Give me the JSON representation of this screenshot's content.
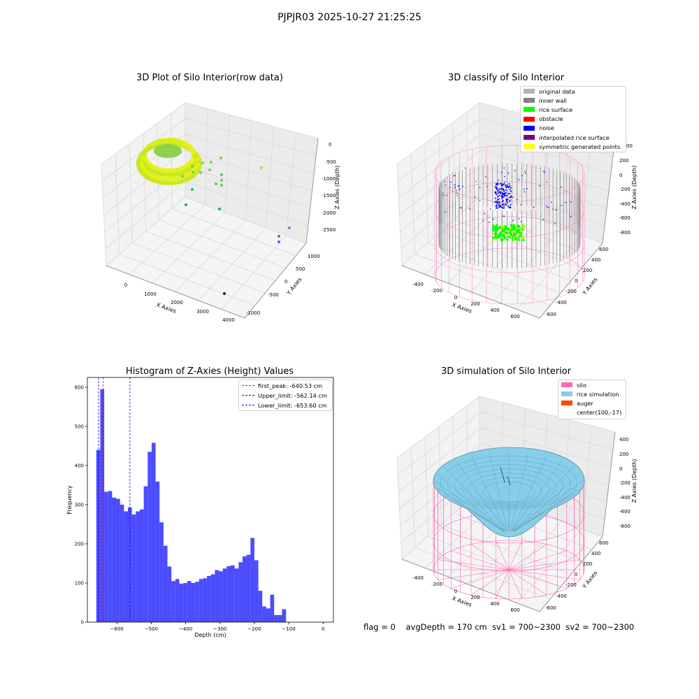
{
  "suptitle": "PJPJR03 2025-10-27 21:25:25",
  "status": {
    "flag": "flag = 0",
    "avg_depth": "avgDepth = 170 cm",
    "sv1": "sv1 = 700~2300",
    "sv2": "sv2 = 700~2300"
  },
  "plot1": {
    "title": "3D Plot of Silo Interior(row data)",
    "xlabel": "X Axies",
    "ylabel": "Y Axies",
    "zlabel": "Z Axies (Depth)",
    "xticks": [
      "0",
      "1000",
      "2000",
      "3000",
      "4000"
    ],
    "yticks": [
      "-1000",
      "-500",
      "0",
      "500",
      "1000"
    ],
    "zticks": [
      "0",
      "-500",
      "-1000",
      "-1500",
      "-2000",
      "-2500"
    ]
  },
  "plot2": {
    "title": "3D classify of Silo Interior",
    "xlabel": "X Axies",
    "ylabel": "Y Axies",
    "zlabel": "Z Axies (Depth)",
    "xticks": [
      "-400",
      "-200",
      "0",
      "200",
      "400",
      "600"
    ],
    "yticks": [
      "-600",
      "-400",
      "-200",
      "0",
      "200",
      "400",
      "600"
    ],
    "zticks": [
      "200",
      "0",
      "-200",
      "-400",
      "-600",
      "-800"
    ],
    "z_top_partial": "00",
    "legend": [
      {
        "label": "original data",
        "color": "#b3b3b3"
      },
      {
        "label": "inner wall",
        "color": "#808080"
      },
      {
        "label": "rice surface",
        "color": "#00ff00"
      },
      {
        "label": "obstacle",
        "color": "#ff0000"
      },
      {
        "label": "noise",
        "color": "#0000ff"
      },
      {
        "label": "interpolated rice surface",
        "color": "#800080"
      },
      {
        "label": "symmetric generated points",
        "color": "#ffff00"
      }
    ]
  },
  "plot4": {
    "title": "3D simulation of Silo Interior",
    "xlabel": "X Axies",
    "ylabel": "Y Axies",
    "zlabel": "Z Axies (Depth)",
    "xticks": [
      "-400",
      "-200",
      "0",
      "200",
      "400",
      "600"
    ],
    "yticks": [
      "-600",
      "-400",
      "-200",
      "0",
      "200",
      "400",
      "600"
    ],
    "zticks": [
      "400",
      "200",
      "0",
      "-200",
      "-400",
      "-600",
      "-800"
    ],
    "legend": [
      {
        "label": "silo",
        "color": "#ff69b4"
      },
      {
        "label": "rice simulation",
        "color": "#87ceeb"
      },
      {
        "label": "auger",
        "color": "#ff4500"
      },
      {
        "label": "center(100,-17)",
        "color": ""
      }
    ]
  },
  "chart_data": {
    "type": "bar",
    "title": "Histogram of Z-Axies (Height) Values",
    "xlabel": "Depth (cm)",
    "ylabel": "Frequency",
    "color": "#0000ff",
    "xlim": [
      -686,
      30
    ],
    "ylim": [
      0,
      625
    ],
    "xticks": [
      -600,
      -500,
      -400,
      -300,
      -200,
      -100,
      0
    ],
    "yticks": [
      0,
      100,
      200,
      300,
      400,
      500,
      600
    ],
    "bin_start": -660,
    "bin_width": 11.5,
    "values": [
      440,
      595,
      333,
      335,
      318,
      315,
      300,
      283,
      293,
      275,
      283,
      288,
      347,
      435,
      458,
      359,
      255,
      195,
      142,
      105,
      110,
      98,
      100,
      105,
      100,
      103,
      110,
      112,
      118,
      122,
      133,
      130,
      137,
      143,
      145,
      137,
      153,
      168,
      172,
      215,
      158,
      80,
      40,
      35,
      70,
      18,
      18,
      33
    ],
    "vlines": [
      {
        "label": "first_peak: -640.53 cm",
        "x": -640.53,
        "color": "#ff0000"
      },
      {
        "label": "Upper_limit: -562.14 cm",
        "x": -562.14,
        "color": "#0000ff"
      },
      {
        "label": "Lower_limit: -653.60 cm",
        "x": -653.6,
        "color": "#0000ff"
      }
    ]
  }
}
